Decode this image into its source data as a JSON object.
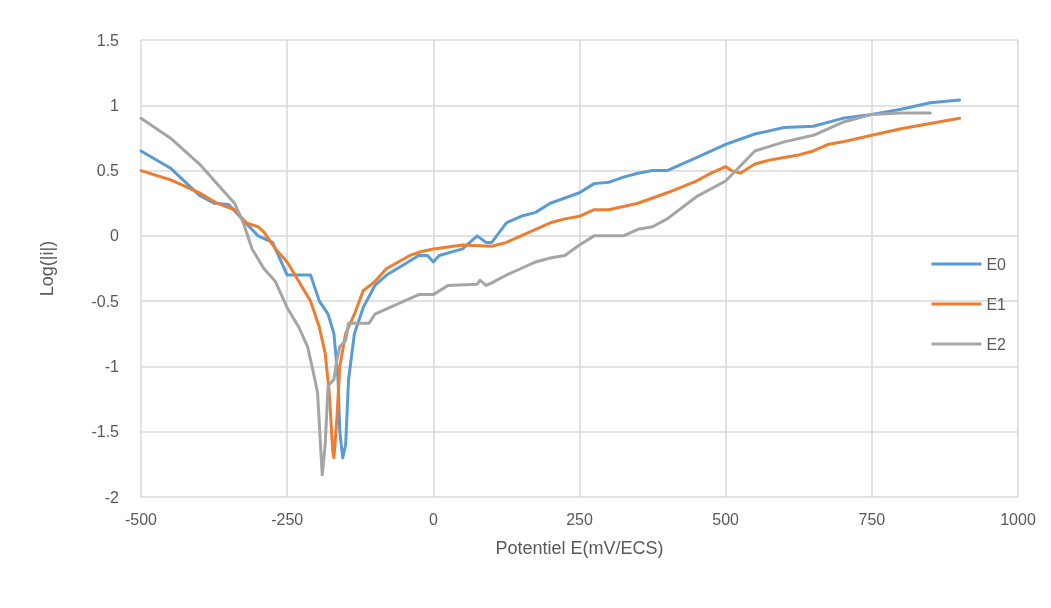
{
  "chart_data": {
    "type": "line",
    "xlabel": "Potentiel E(mV/ECS)",
    "ylabel": "Log(|i|)",
    "xlim": [
      -500,
      1000
    ],
    "xticks": [
      -500,
      -250,
      0,
      250,
      500,
      750,
      1000
    ],
    "ylim": [
      -2,
      1.5
    ],
    "yticks": [
      -2,
      -1.5,
      -1,
      -0.5,
      0,
      0.5,
      1,
      1.5
    ],
    "grid": true,
    "legend": "right",
    "marker": "none",
    "line_style": "solid",
    "series": [
      {
        "name": "E0",
        "color": "#5b9bd5",
        "x": [
          -500,
          -450,
          -400,
          -375,
          -350,
          -325,
          -300,
          -275,
          -250,
          -225,
          -210,
          -195,
          -180,
          -170,
          -163,
          -160,
          -155,
          -150,
          -145,
          -135,
          -120,
          -100,
          -80,
          -50,
          -25,
          -10,
          0,
          10,
          50,
          75,
          90,
          100,
          125,
          150,
          175,
          200,
          250,
          275,
          300,
          325,
          350,
          375,
          400,
          450,
          500,
          550,
          600,
          650,
          700,
          750,
          800,
          850,
          900
        ],
        "values": [
          0.65,
          0.52,
          0.31,
          0.25,
          0.24,
          0.12,
          0.0,
          -0.05,
          -0.3,
          -0.3,
          -0.3,
          -0.5,
          -0.6,
          -0.75,
          -1.1,
          -1.5,
          -1.7,
          -1.6,
          -1.1,
          -0.75,
          -0.55,
          -0.38,
          -0.3,
          -0.22,
          -0.15,
          -0.15,
          -0.2,
          -0.15,
          -0.1,
          0.0,
          -0.05,
          -0.05,
          0.1,
          0.15,
          0.18,
          0.25,
          0.33,
          0.4,
          0.41,
          0.45,
          0.48,
          0.5,
          0.5,
          0.6,
          0.7,
          0.78,
          0.83,
          0.84,
          0.9,
          0.93,
          0.97,
          1.02,
          1.04
        ]
      },
      {
        "name": "E1",
        "color": "#ed7d31",
        "x": [
          -500,
          -450,
          -400,
          -370,
          -340,
          -320,
          -300,
          -290,
          -270,
          -250,
          -230,
          -210,
          -195,
          -185,
          -178,
          -172,
          -170,
          -165,
          -160,
          -150,
          -135,
          -120,
          -100,
          -80,
          -60,
          -40,
          -20,
          0,
          50,
          100,
          125,
          150,
          175,
          200,
          225,
          250,
          275,
          300,
          350,
          400,
          450,
          475,
          500,
          510,
          525,
          550,
          575,
          600,
          625,
          650,
          675,
          700,
          750,
          800,
          850,
          900
        ],
        "values": [
          0.5,
          0.43,
          0.33,
          0.25,
          0.2,
          0.1,
          0.07,
          0.03,
          -0.1,
          -0.2,
          -0.35,
          -0.5,
          -0.7,
          -0.9,
          -1.2,
          -1.65,
          -1.7,
          -1.4,
          -1.0,
          -0.75,
          -0.6,
          -0.42,
          -0.35,
          -0.25,
          -0.2,
          -0.15,
          -0.12,
          -0.1,
          -0.07,
          -0.08,
          -0.05,
          0.0,
          0.05,
          0.1,
          0.13,
          0.15,
          0.2,
          0.2,
          0.25,
          0.33,
          0.42,
          0.48,
          0.53,
          0.5,
          0.48,
          0.55,
          0.58,
          0.6,
          0.62,
          0.65,
          0.7,
          0.72,
          0.77,
          0.82,
          0.86,
          0.9
        ]
      },
      {
        "name": "E2",
        "color": "#a5a5a5",
        "x": [
          -500,
          -450,
          -400,
          -360,
          -340,
          -325,
          -310,
          -290,
          -270,
          -250,
          -230,
          -215,
          -205,
          -198,
          -193,
          -190,
          -185,
          -180,
          -170,
          -165,
          -160,
          -150,
          -145,
          -110,
          -100,
          -75,
          -60,
          -50,
          -25,
          0,
          25,
          75,
          80,
          90,
          100,
          125,
          150,
          175,
          200,
          225,
          250,
          275,
          300,
          325,
          350,
          375,
          400,
          450,
          500,
          550,
          600,
          650,
          700,
          750,
          800,
          850
        ],
        "values": [
          0.9,
          0.75,
          0.55,
          0.35,
          0.25,
          0.1,
          -0.1,
          -0.25,
          -0.35,
          -0.55,
          -0.7,
          -0.85,
          -1.05,
          -1.2,
          -1.6,
          -1.83,
          -1.6,
          -1.15,
          -1.1,
          -0.95,
          -0.85,
          -0.8,
          -0.67,
          -0.67,
          -0.6,
          -0.55,
          -0.52,
          -0.5,
          -0.45,
          -0.45,
          -0.38,
          -0.37,
          -0.34,
          -0.38,
          -0.36,
          -0.3,
          -0.25,
          -0.2,
          -0.17,
          -0.15,
          -0.07,
          0.0,
          0.0,
          0.0,
          0.05,
          0.07,
          0.13,
          0.3,
          0.42,
          0.65,
          0.72,
          0.77,
          0.87,
          0.93,
          0.94,
          0.94
        ]
      }
    ]
  }
}
